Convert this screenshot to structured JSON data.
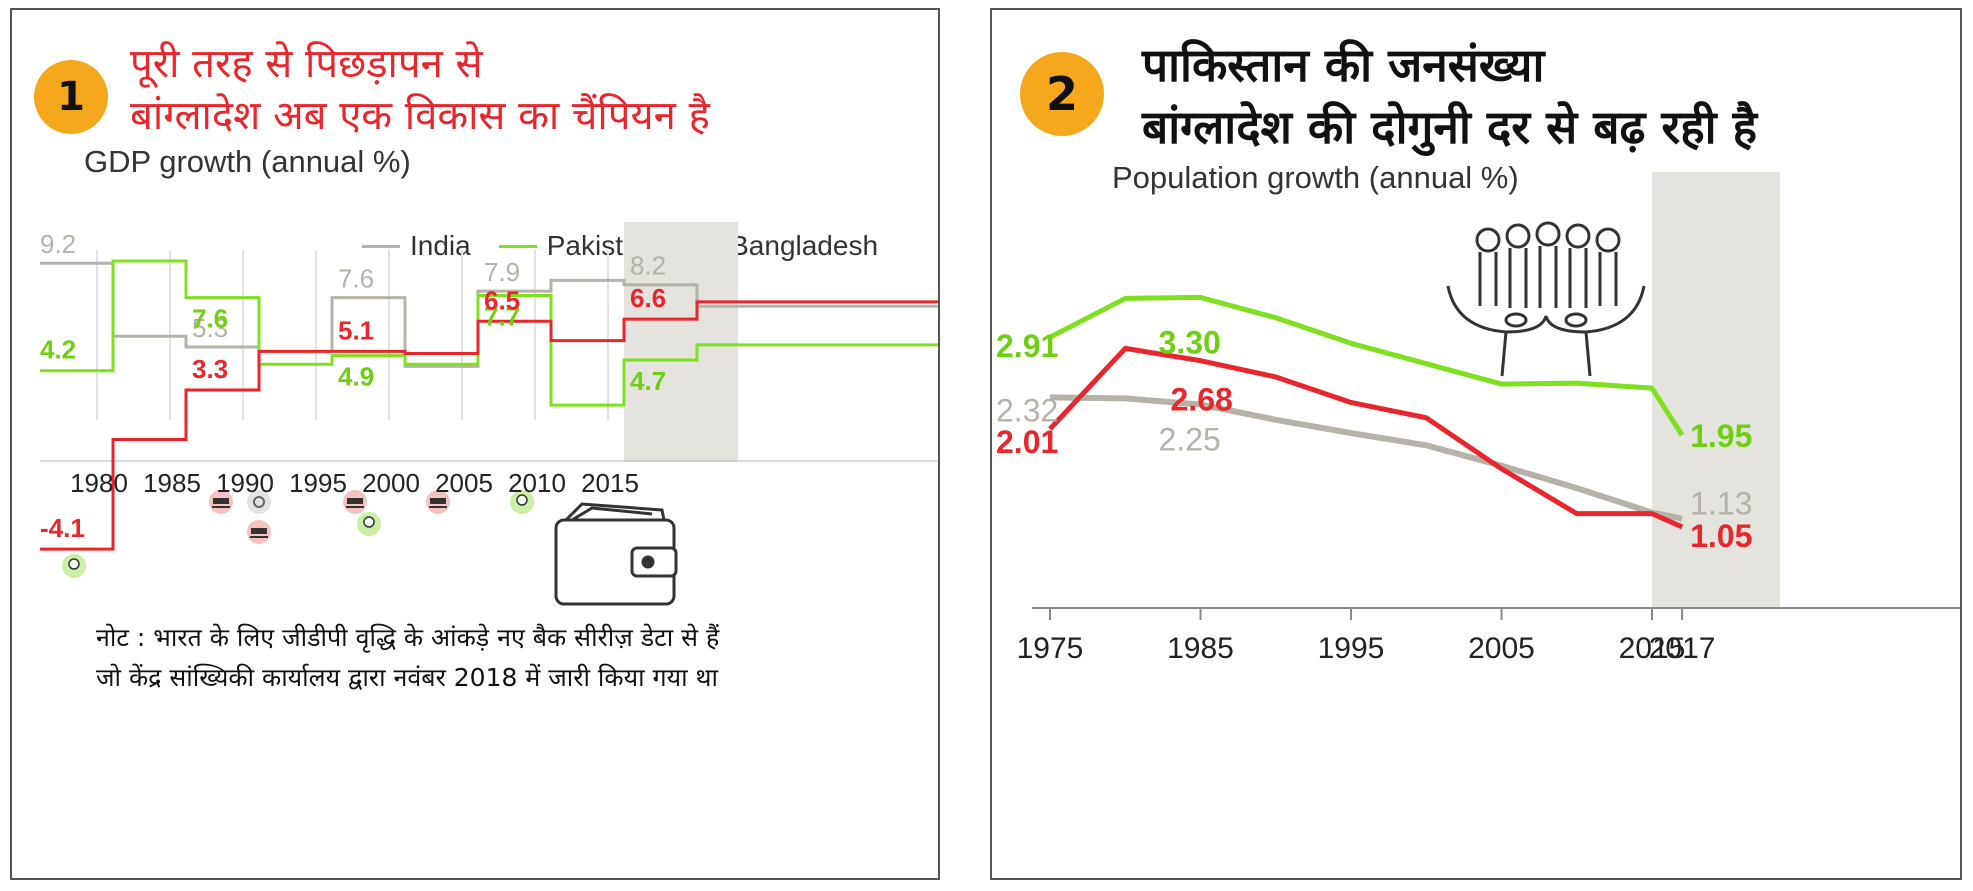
{
  "panel1": {
    "badge": "1",
    "heading_line1": "पूरी तरह से पिछड़ापन से",
    "heading_line2": "बांग्लादेश अब एक विकास का चैंपियन है",
    "subtitle": "GDP growth (annual %)",
    "note_line1": "नोट : भारत के लिए जीडीपी वृद्धि के आंकड़े नए बैक सीरीज़ डेटा से हैं",
    "note_line2": "जो केंद्र सांख्यिकी कार्यालय द्वारा नवंबर 2018 में जारी किया गया था"
  },
  "panel2": {
    "badge": "2",
    "heading_line1": "पाकिस्तान की जनसंख्या",
    "heading_line2": "बांग्लादेश की दोगुनी दर से बढ़ रही है",
    "subtitle": "Population growth (annual %)"
  },
  "colors": {
    "india": "#b6b2a8",
    "pakistan": "#7fe020",
    "bangladesh": "#e8262b",
    "shade": "#e4e3de",
    "badge": "#f5a81c"
  },
  "chart_data": [
    {
      "type": "line",
      "step": true,
      "title": "GDP growth (annual %)",
      "x_ticks": [
        "1980",
        "1985",
        "1990",
        "1995",
        "2000",
        "2005",
        "2010",
        "2015"
      ],
      "shaded_from": 2015,
      "legend": [
        "India",
        "Pakistan",
        "Bangladesh"
      ],
      "legend_position": "top-right",
      "series": [
        {
          "name": "India",
          "x": [
            1975,
            1980,
            1985,
            1990,
            1995,
            2000,
            2005,
            2010,
            2015,
            2020
          ],
          "y": [
            9.2,
            5.8,
            5.3,
            5.1,
            7.6,
            4.4,
            7.9,
            8.4,
            8.2,
            7.2
          ],
          "labels": [
            {
              "x": 1975,
              "text": "9.2"
            },
            {
              "x": 1985,
              "text": "5.3"
            },
            {
              "x": 1995,
              "text": "7.6"
            },
            {
              "x": 2005,
              "text": "7.9"
            },
            {
              "x": 2015,
              "text": "8.2"
            }
          ]
        },
        {
          "name": "Pakistan",
          "x": [
            1975,
            1980,
            1985,
            1990,
            1995,
            2000,
            2005,
            2010,
            2015,
            2020
          ],
          "y": [
            4.2,
            9.3,
            7.6,
            4.5,
            4.9,
            4.5,
            7.7,
            2.6,
            4.7,
            5.4
          ],
          "labels": [
            {
              "x": 1975,
              "text": "4.2"
            },
            {
              "x": 1985,
              "text": "7.6"
            },
            {
              "x": 1995,
              "text": "4.9"
            },
            {
              "x": 2005,
              "text": "7.7"
            },
            {
              "x": 2015,
              "text": "4.7"
            }
          ]
        },
        {
          "name": "Bangladesh",
          "x": [
            1975,
            1980,
            1985,
            1990,
            1995,
            2000,
            2005,
            2010,
            2015,
            2020
          ],
          "y": [
            -4.1,
            1.0,
            3.3,
            5.1,
            5.1,
            5.0,
            6.5,
            5.6,
            6.6,
            7.4
          ],
          "labels": [
            {
              "x": 1975,
              "text": "-4.1"
            },
            {
              "x": 1985,
              "text": "3.3"
            },
            {
              "x": 1995,
              "text": "5.1"
            },
            {
              "x": 2005,
              "text": "6.5"
            },
            {
              "x": 2015,
              "text": "6.6"
            }
          ]
        }
      ]
    },
    {
      "type": "line",
      "title": "Population growth (annual %)",
      "x_ticks": [
        "1975",
        "1985",
        "1995",
        "2005",
        "2015",
        "2017"
      ],
      "shaded_from": 2015,
      "series": [
        {
          "name": "Pakistan",
          "x": [
            1975,
            1980,
            1985,
            1990,
            1995,
            2000,
            2005,
            2010,
            2015,
            2017
          ],
          "y": [
            2.91,
            3.29,
            3.3,
            3.1,
            2.85,
            2.65,
            2.45,
            2.46,
            2.41,
            1.95
          ],
          "labels": [
            {
              "x": 1975,
              "text": "2.91"
            },
            {
              "x": 1985,
              "text": "3.30"
            },
            {
              "x": 2017,
              "text": "1.95"
            }
          ]
        },
        {
          "name": "India",
          "x": [
            1975,
            1980,
            1985,
            1990,
            1995,
            2000,
            2005,
            2010,
            2015,
            2017
          ],
          "y": [
            2.32,
            2.31,
            2.25,
            2.1,
            1.97,
            1.85,
            1.65,
            1.43,
            1.19,
            1.13
          ],
          "labels": [
            {
              "x": 1975,
              "text": "2.32"
            },
            {
              "x": 1985,
              "text": "2.25"
            },
            {
              "x": 2017,
              "text": "1.13"
            }
          ]
        },
        {
          "name": "Bangladesh",
          "x": [
            1975,
            1980,
            1985,
            1990,
            1995,
            2000,
            2005,
            2010,
            2015,
            2017
          ],
          "y": [
            2.01,
            2.8,
            2.68,
            2.52,
            2.27,
            2.12,
            1.62,
            1.18,
            1.18,
            1.05
          ],
          "labels": [
            {
              "x": 1985,
              "text": "2.68"
            },
            {
              "x": 1975,
              "text": "2.01"
            },
            {
              "x": 2017,
              "text": "1.05"
            }
          ]
        }
      ]
    }
  ]
}
